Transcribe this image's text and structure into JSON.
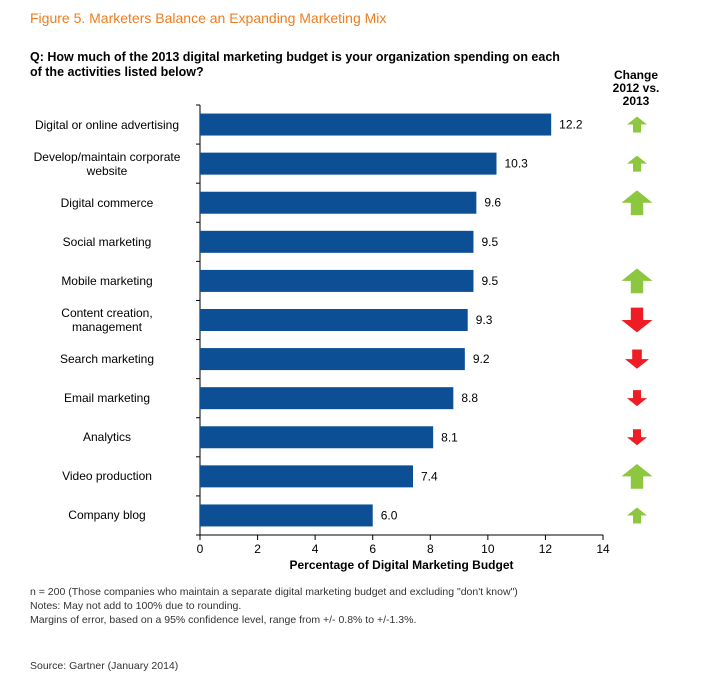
{
  "figure_title": "Figure 5. Marketers Balance an Expanding Marketing Mix",
  "question": "Q:  How much of the 2013 digital marketing budget is your organization spending on each of the activities listed below?",
  "change_header": "Change\n2012 vs.\n2013",
  "colors": {
    "bar": "#0d4f95",
    "up": "#8dc63f",
    "down": "#ee1c25",
    "title": "#f07c1e"
  },
  "chart_data": {
    "type": "bar",
    "orientation": "horizontal",
    "categories": [
      "Digital or online advertising",
      "Develop/maintain corporate\nwebsite",
      "Digital commerce",
      "Social marketing",
      "Mobile marketing",
      "Content creation,\nmanagement",
      "Search marketing",
      "Email marketing",
      "Analytics",
      "Video production",
      "Company blog"
    ],
    "values": [
      12.2,
      10.3,
      9.6,
      9.5,
      9.5,
      9.3,
      9.2,
      8.8,
      8.1,
      7.4,
      6.0
    ],
    "value_labels": [
      "12.2",
      "10.3",
      "9.6",
      "9.5",
      "9.5",
      "9.3",
      "9.2",
      "8.8",
      "8.1",
      "7.4",
      "6.0"
    ],
    "changes": [
      {
        "direction": "up",
        "magnitude": "small"
      },
      {
        "direction": "up",
        "magnitude": "small"
      },
      {
        "direction": "up",
        "magnitude": "large"
      },
      {
        "direction": "none",
        "magnitude": "none"
      },
      {
        "direction": "up",
        "magnitude": "large"
      },
      {
        "direction": "down",
        "magnitude": "large"
      },
      {
        "direction": "down",
        "magnitude": "medium"
      },
      {
        "direction": "down",
        "magnitude": "small"
      },
      {
        "direction": "down",
        "magnitude": "small"
      },
      {
        "direction": "up",
        "magnitude": "large"
      },
      {
        "direction": "up",
        "magnitude": "small"
      }
    ],
    "xlabel": "Percentage of Digital Marketing Budget",
    "xlim": [
      0,
      14
    ],
    "xticks": [
      "0",
      "2",
      "4",
      "6",
      "8",
      "10",
      "12",
      "14"
    ],
    "grid": false,
    "legend": "none"
  },
  "notes": [
    "n = 200 (Those companies who maintain a separate digital marketing budget and excluding \"don't know\")",
    "Notes: May not add to 100% due to rounding.",
    "Margins of error, based on a 95% confidence level, range from +/- 0.8% to +/-1.3%."
  ],
  "source": "Source: Gartner (January 2014)"
}
